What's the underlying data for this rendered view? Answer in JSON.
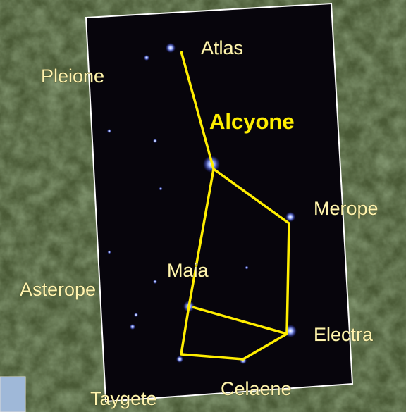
{
  "labels": [
    "Atlas",
    "Pleione",
    "Alcyone",
    "Merope",
    "Maia",
    "Asterope",
    "Electra",
    "Taygete",
    "Celaene"
  ]
}
